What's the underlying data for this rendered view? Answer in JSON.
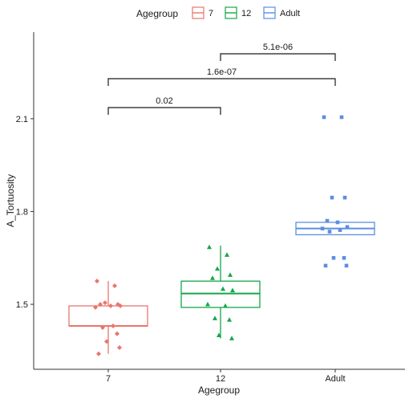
{
  "chart_data": {
    "type": "box",
    "xlabel": "Agegroup",
    "ylabel": "A_Tortuosity",
    "legend": {
      "title": "Agegroup",
      "position": "top",
      "entries": [
        "7",
        "12",
        "Adult"
      ]
    },
    "categories": [
      "7",
      "12",
      "Adult"
    ],
    "ylim": [
      1.29,
      2.38
    ],
    "yticks": [
      1.5,
      1.8,
      2.1
    ],
    "yticklabels": [
      "1.5",
      "1.8",
      "2.1"
    ],
    "colors": {
      "7": "#e8766d",
      "12": "#14a848",
      "Adult": "#5b8fe0"
    },
    "markers": {
      "7": "diamond",
      "12": "triangle",
      "Adult": "square"
    },
    "boxes": [
      {
        "group": "7",
        "min": 1.34,
        "q1": 1.43,
        "median": 1.43,
        "q3": 1.495,
        "max": 1.575
      },
      {
        "group": "12",
        "min": 1.39,
        "q1": 1.49,
        "median": 1.535,
        "q3": 1.575,
        "max": 1.69
      },
      {
        "group": "Adult",
        "min": 1.725,
        "q1": 1.725,
        "median": 1.745,
        "q3": 1.765,
        "max": 1.765
      }
    ],
    "points": [
      {
        "group": "7",
        "values": [
          1.575,
          1.56,
          1.505,
          1.5,
          1.5,
          1.495,
          1.495,
          1.49,
          1.43,
          1.425,
          1.405,
          1.38,
          1.36,
          1.34
        ]
      },
      {
        "group": "12",
        "values": [
          1.685,
          1.66,
          1.615,
          1.595,
          1.585,
          1.55,
          1.545,
          1.5,
          1.495,
          1.455,
          1.45,
          1.4,
          1.39
        ]
      },
      {
        "group": "Adult",
        "values": [
          2.105,
          2.105,
          1.845,
          1.845,
          1.77,
          1.765,
          1.75,
          1.745,
          1.74,
          1.735,
          1.65,
          1.65,
          1.625,
          1.625
        ]
      }
    ],
    "comparisons": [
      {
        "from": "7",
        "to": "12",
        "label": "0.02"
      },
      {
        "from": "7",
        "to": "Adult",
        "label": "1.6e-07"
      },
      {
        "from": "12",
        "to": "Adult",
        "label": "5.1e-06"
      }
    ]
  }
}
